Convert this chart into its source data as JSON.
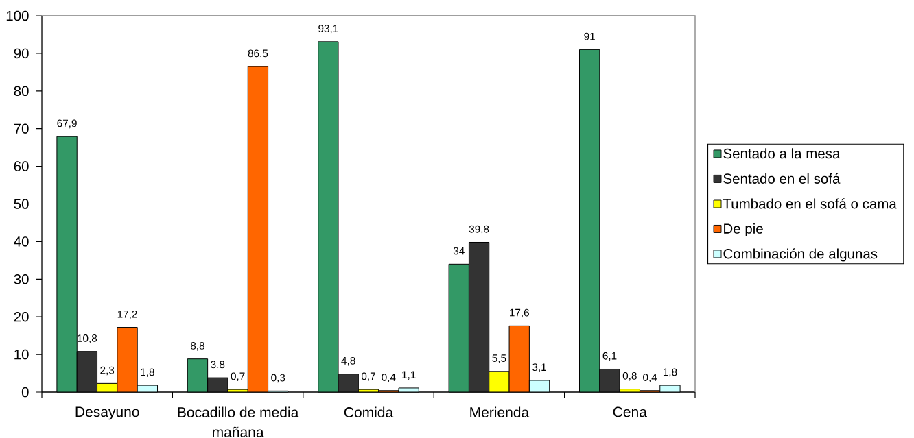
{
  "chart_data": {
    "type": "bar",
    "categories": [
      "Desayuno",
      "Bocadillo de media mañana",
      "Comida",
      "Merienda",
      "Cena"
    ],
    "series": [
      {
        "name": "Sentado a la mesa",
        "color": "#339966",
        "values": [
          67.9,
          8.8,
          93.1,
          34,
          91
        ],
        "value_labels": [
          "67,9",
          "8,8",
          "93,1",
          "34",
          "91"
        ]
      },
      {
        "name": "Sentado en el sofá",
        "color": "#333333",
        "values": [
          10.8,
          3.8,
          4.8,
          39.8,
          6.1
        ],
        "value_labels": [
          "10,8",
          "3,8",
          "4,8",
          "39,8",
          "6,1"
        ]
      },
      {
        "name": "Tumbado en el sofá o cama",
        "color": "#ffff00",
        "values": [
          2.3,
          0.7,
          0.7,
          5.5,
          0.8
        ],
        "value_labels": [
          "2,3",
          "0,7",
          "0,7",
          "5,5",
          "0,8"
        ]
      },
      {
        "name": "De pie",
        "color": "#ff6600",
        "values": [
          17.2,
          86.5,
          0.4,
          17.6,
          0.4
        ],
        "value_labels": [
          "17,2",
          "86,5",
          "0,4",
          "17,6",
          "0,4"
        ]
      },
      {
        "name": "Combinación de algunas",
        "color": "#ccffff",
        "values": [
          1.8,
          0.3,
          1.1,
          3.1,
          1.8
        ],
        "value_labels": [
          "1,8",
          "0,3",
          "1,1",
          "3,1",
          "1,8"
        ]
      }
    ],
    "ylim": [
      0,
      100
    ],
    "yticks": [
      0,
      10,
      20,
      30,
      40,
      50,
      60,
      70,
      80,
      90,
      100
    ],
    "legend": "right"
  }
}
